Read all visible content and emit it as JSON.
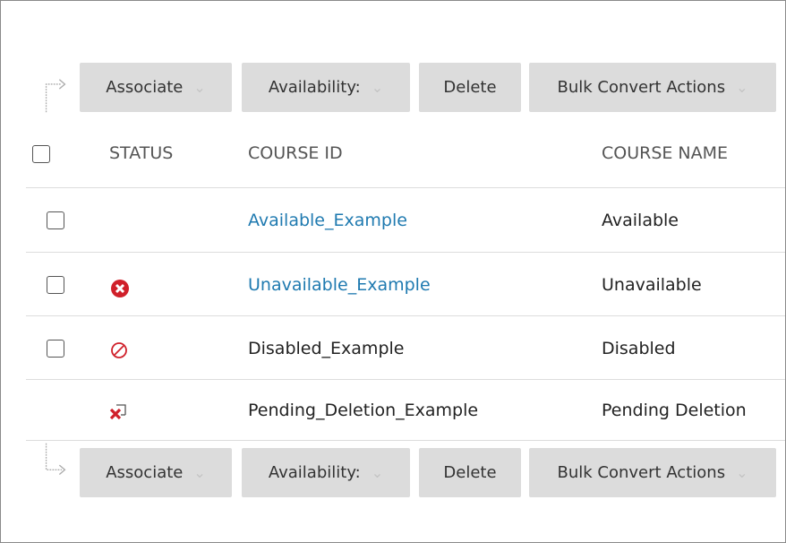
{
  "toolbar": {
    "associate": "Associate",
    "availability": "Availability:",
    "delete": "Delete",
    "bulk": "Bulk Convert Actions"
  },
  "table": {
    "headers": {
      "status": "STATUS",
      "course_id": "COURSE ID",
      "course_name": "COURSE NAME"
    },
    "rows": [
      {
        "status": "",
        "course_id": "Available_Example",
        "course_name": "Available",
        "linked": true,
        "checkbox": true
      },
      {
        "status": "unavailable-icon",
        "course_id": "Unavailable_Example",
        "course_name": "Unavailable",
        "linked": true,
        "checkbox": true
      },
      {
        "status": "disabled-icon",
        "course_id": "Disabled_Example",
        "course_name": "Disabled",
        "linked": false,
        "checkbox": true
      },
      {
        "status": "pending-deletion-icon",
        "course_id": "Pending_Deletion_Example",
        "course_name": "Pending Deletion",
        "linked": false,
        "checkbox": false
      }
    ]
  },
  "colors": {
    "link": "#1f7ab0",
    "error": "#d0202a",
    "button_bg": "#dcdcdc"
  }
}
